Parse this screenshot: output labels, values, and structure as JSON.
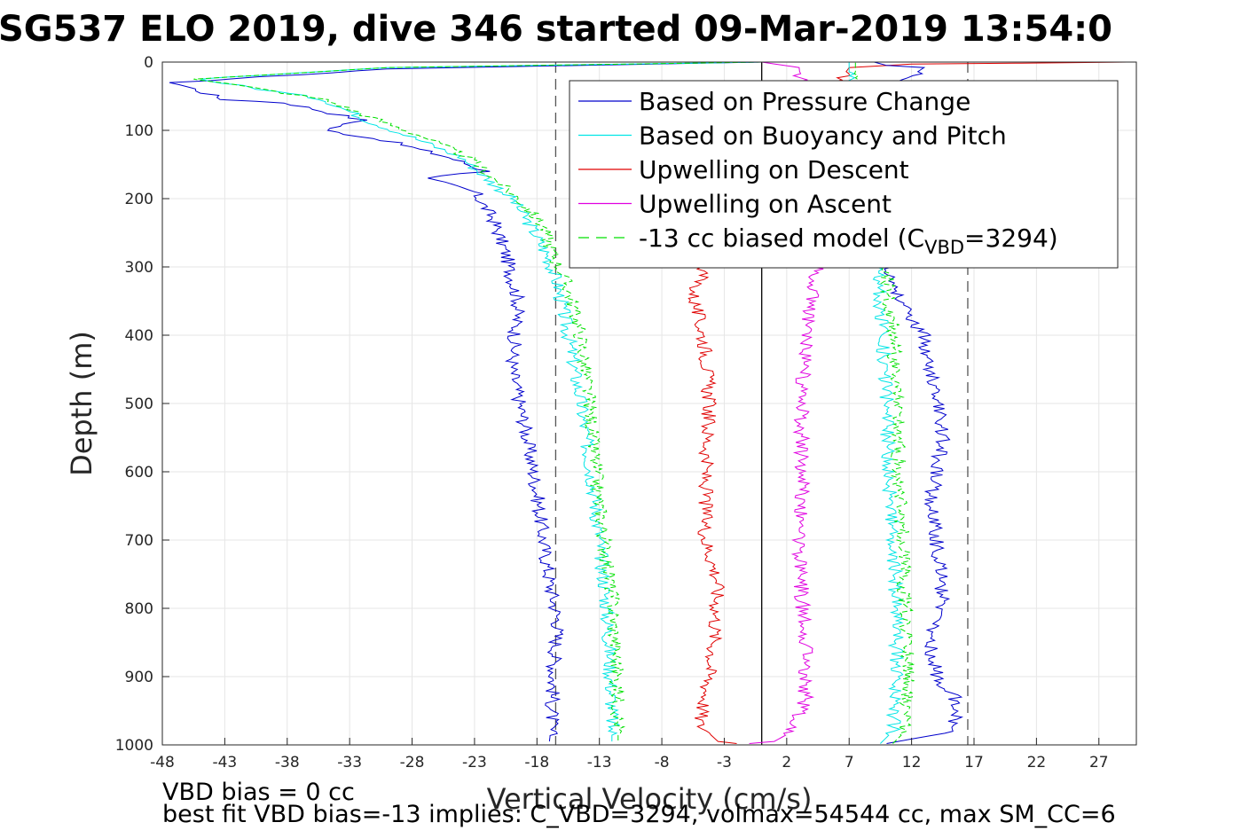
{
  "chart_data": {
    "type": "line",
    "title": "SG537 ELO 2019, dive 346 started 09-Mar-2019 13:54:0",
    "xlabel": "Vertical Velocity (cm/s)",
    "ylabel": "Depth (m)",
    "xlim": [
      -48,
      30
    ],
    "ylim": [
      0,
      1000
    ],
    "y_reversed": true,
    "xticks": [
      "-48",
      "-43",
      "-38",
      "-33",
      "-28",
      "-23",
      "-18",
      "-13",
      "-8",
      "-3",
      "2",
      "7",
      "12",
      "17",
      "22",
      "27"
    ],
    "yticks": [
      "0",
      "100",
      "200",
      "300",
      "400",
      "500",
      "600",
      "700",
      "800",
      "900",
      "1000"
    ],
    "grid": true,
    "legend_position": "top-right",
    "legend": [
      {
        "label": "Based on Pressure Change",
        "color": "#0000cc",
        "style": "solid"
      },
      {
        "label": "Based on Buoyancy and Pitch",
        "color": "#00e5e5",
        "style": "solid"
      },
      {
        "label": "Upwelling on Descent",
        "color": "#e00000",
        "style": "solid"
      },
      {
        "label": "Upwelling on Ascent",
        "color": "#e000e0",
        "style": "solid"
      },
      {
        "label_prefix": "-13 cc biased model (C",
        "label_sub": "VBD",
        "label_suffix": "=3294)",
        "color": "#00e000",
        "style": "dashed"
      }
    ],
    "reference_lines": [
      {
        "x": -16.5,
        "style": "dashed",
        "color": "#555555"
      },
      {
        "x": 16.5,
        "style": "dashed",
        "color": "#555555"
      },
      {
        "x": 0,
        "style": "solid",
        "color": "#000000"
      }
    ],
    "series": [
      {
        "key": "pressure_descent",
        "color": "#0000cc",
        "x": [
          0,
          -30,
          -47,
          -43,
          -38,
          -32,
          -35,
          -30,
          -25,
          -22,
          -27,
          -23,
          -21.5,
          -20.5,
          -19.5,
          -20,
          -19,
          -18,
          -17.5,
          -17,
          -16.3,
          -16.7,
          -16.8,
          -17
        ],
        "y": [
          0,
          10,
          30,
          55,
          60,
          85,
          100,
          115,
          140,
          160,
          170,
          190,
          230,
          280,
          350,
          450,
          530,
          630,
          700,
          760,
          820,
          900,
          960,
          995
        ]
      },
      {
        "key": "buoyancy_descent",
        "color": "#00e5e5",
        "x": [
          0,
          -30,
          -45,
          -40,
          -35,
          -31,
          -28,
          -24,
          -22,
          -20,
          -18.5,
          -17,
          -16.3,
          -15.5,
          -14.5,
          -13.5,
          -13,
          -12.5,
          -12.2,
          -12,
          -12
        ],
        "y": [
          0,
          8,
          25,
          40,
          55,
          90,
          110,
          140,
          170,
          200,
          240,
          290,
          330,
          400,
          500,
          620,
          700,
          780,
          860,
          940,
          995
        ]
      },
      {
        "key": "model_descent",
        "color": "#00e000",
        "x": [
          0,
          -30,
          -45,
          -40,
          -35,
          -30,
          -27,
          -23.5,
          -21.5,
          -19.5,
          -17.5,
          -16.5,
          -15.5,
          -14.5,
          -13.8,
          -13.2,
          -12.6,
          -12,
          -11.7,
          -11.5,
          -11.5
        ],
        "y": [
          0,
          8,
          25,
          40,
          55,
          90,
          110,
          140,
          170,
          200,
          240,
          290,
          330,
          400,
          500,
          620,
          700,
          780,
          860,
          940,
          995
        ]
      },
      {
        "key": "upwelling_descent",
        "color": "#e00000",
        "x": [
          29.5,
          12,
          7,
          -4.5,
          -5.5,
          -4.5,
          -4.2,
          -4.5,
          -4.5,
          -3.5,
          -3.8,
          -4.5,
          -5,
          -3.5,
          -2
        ],
        "y": [
          0,
          3,
          8,
          300,
          340,
          420,
          500,
          600,
          700,
          760,
          850,
          930,
          970,
          995,
          998
        ]
      },
      {
        "key": "upwelling_ascent",
        "color": "#e000e0",
        "x": [
          -1,
          1,
          2.5,
          3.5,
          3.5,
          3.2,
          3,
          3.2,
          3.2,
          3.5,
          4,
          4.5,
          3,
          0
        ],
        "y": [
          998,
          995,
          980,
          930,
          850,
          780,
          700,
          620,
          500,
          400,
          350,
          300,
          8,
          0
        ]
      },
      {
        "key": "pressure_ascent",
        "color": "#0000cc",
        "x": [
          10,
          15.5,
          15.5,
          14,
          13.5,
          14.5,
          14,
          13.5,
          14.5,
          13.5,
          13,
          11,
          10,
          8,
          7,
          12,
          13,
          10,
          9
        ],
        "y": [
          998,
          980,
          930,
          900,
          850,
          780,
          700,
          650,
          550,
          450,
          400,
          350,
          300,
          100,
          50,
          20,
          8,
          5,
          0
        ]
      },
      {
        "key": "buoyancy_ascent",
        "color": "#00e5e5",
        "x": [
          9.5,
          10.5,
          10.8,
          10.8,
          10.5,
          10.2,
          10,
          9.7,
          9.3,
          8.5,
          7,
          7
        ],
        "y": [
          998,
          980,
          900,
          800,
          700,
          600,
          500,
          400,
          300,
          150,
          20,
          0
        ]
      },
      {
        "key": "model_ascent",
        "color": "#00e000",
        "x": [
          10.5,
          11.5,
          11.8,
          11.5,
          11.3,
          11,
          10.8,
          10.5,
          10,
          9,
          7.5,
          7.5
        ],
        "y": [
          998,
          980,
          900,
          800,
          700,
          600,
          500,
          400,
          300,
          150,
          20,
          0
        ]
      }
    ]
  },
  "notes": {
    "line1": "VBD bias = 0 cc",
    "line2": "best fit VBD bias=-13 implies: C_VBD=3294, volmax=54544 cc, max SM_CC=6"
  }
}
